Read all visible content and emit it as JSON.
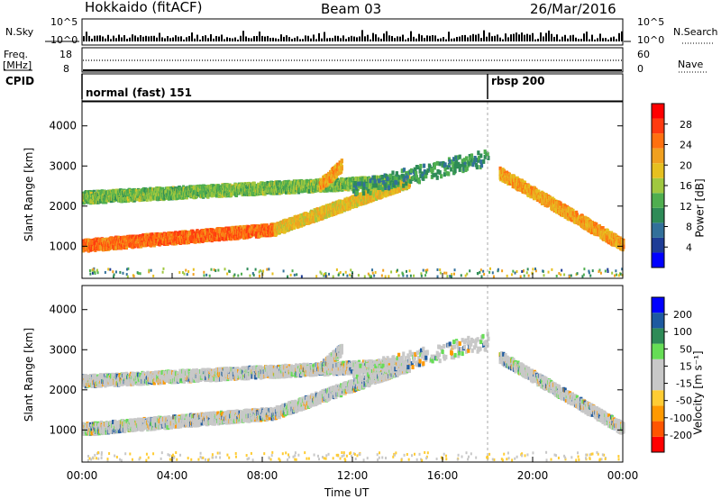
{
  "header": {
    "radar": "Hokkaido (fitACF)",
    "beam": "Beam 03",
    "date": "26/Mar/2016"
  },
  "nsky_panel": {
    "left_label": "N.Sky",
    "right_label": "N.Search",
    "left_ticks": [
      "10^5",
      "10^0"
    ],
    "right_ticks": [
      "10^5",
      "10^0"
    ]
  },
  "freq_panel": {
    "label_line1": "Freq.",
    "label_line2": "[MHz]",
    "right_label": "Nave",
    "left_ticks": [
      "18",
      "8"
    ],
    "right_ticks": [
      "60",
      "0"
    ]
  },
  "cpid_panel": {
    "label": "CPID",
    "mode1": "normal (fast) 151",
    "mode2": "rbsp 200"
  },
  "colors": {
    "power_scale": [
      "#0000ff",
      "#1e3c96",
      "#32709a",
      "#2e8b57",
      "#4fae4f",
      "#a0c840",
      "#e6c020",
      "#f0a020",
      "#ff7010",
      "#ff3a10",
      "#ff0000"
    ],
    "velocity_scale": [
      "#ff0000",
      "#ff5500",
      "#ff9900",
      "#ffcc33",
      "#c8c8c8",
      "#c8c8c8",
      "#66dd55",
      "#2e8b57",
      "#1e5aa0",
      "#0000ff"
    ]
  },
  "chart_data": [
    {
      "type": "heatmap",
      "name": "power",
      "ylabel": "Slant Range [km]",
      "yticks": [
        "1000",
        "2000",
        "3000",
        "4000"
      ],
      "ylim": [
        200,
        4600
      ],
      "xlim_hours": [
        0,
        24
      ],
      "colorbar_label": "Power [dB]",
      "colorbar_ticks": [
        "4",
        "8",
        "12",
        "16",
        "20",
        "24",
        "28"
      ],
      "colorbar_range": [
        0,
        32
      ],
      "features": [
        {
          "feature": "main band",
          "time_hours": [
            0,
            8.5
          ],
          "range_km": [
            1000,
            1400
          ],
          "value_db": 26
        },
        {
          "feature": "rising band",
          "time_hours": [
            8.5,
            14.5
          ],
          "range_km": [
            1400,
            2600
          ],
          "value_db": 20
        },
        {
          "feature": "upper band",
          "time_hours": [
            0,
            14
          ],
          "range_km": [
            2200,
            2600
          ],
          "value_db": 14
        },
        {
          "feature": "patch",
          "time_hours": [
            10.5,
            11.5
          ],
          "range_km": [
            2500,
            3000
          ],
          "value_db": 22
        },
        {
          "feature": "scatter",
          "time_hours": [
            12,
            18
          ],
          "range_km": [
            2400,
            3200
          ],
          "value_db": 10
        },
        {
          "feature": "descending band",
          "time_hours": [
            18.5,
            24
          ],
          "range_km": [
            2800,
            1000
          ],
          "value_db": 22
        }
      ]
    },
    {
      "type": "heatmap",
      "name": "velocity",
      "ylabel": "Slant Range [km]",
      "yticks": [
        "1000",
        "2000",
        "3000",
        "4000"
      ],
      "ylim": [
        200,
        4600
      ],
      "xlim_hours": [
        0,
        24
      ],
      "colorbar_label": "Velocity [m s⁻¹]",
      "colorbar_ticks": [
        "200",
        "100",
        "50",
        "15",
        "-15",
        "-50",
        "-100",
        "-200"
      ],
      "colorbar_range": [
        -250,
        250
      ],
      "xticks": [
        "00:00",
        "04:00",
        "08:00",
        "12:00",
        "16:00",
        "20:00",
        "00:00"
      ],
      "xlabel": "Time UT"
    }
  ]
}
